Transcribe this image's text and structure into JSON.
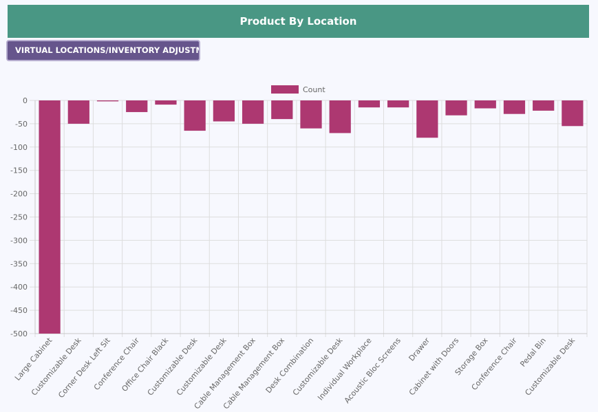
{
  "header": {
    "title": "Product By Location"
  },
  "location_button": {
    "label": "VIRTUAL LOCATIONS/INVENTORY ADJUSTMENT"
  },
  "colors": {
    "header_bg": "#499784",
    "button_bg": "#66558c",
    "bar": "#ad3871"
  },
  "chart_data": {
    "type": "bar",
    "legend": [
      "Count"
    ],
    "legend_position": "top-center",
    "grid": true,
    "categories": [
      "Large Cabinet",
      "Customizable Desk",
      "Corner Desk Left Sit",
      "Conference Chair",
      "Office Chair Black",
      "Customizable Desk",
      "Customizable Desk",
      "Cable Management Box",
      "Cable Management Box",
      "Desk Combination",
      "Customizable Desk",
      "Individual Workplace",
      "Acoustic Bloc Screens",
      "Drawer",
      "Cabinet with Doors",
      "Storage Box",
      "Conference Chair",
      "Pedal Bin",
      "Customizable Desk"
    ],
    "series": [
      {
        "name": "Count",
        "values": [
          -500,
          -50,
          -2,
          -25,
          -9,
          -65,
          -45,
          -50,
          -40,
          -60,
          -70,
          -15,
          -15,
          -80,
          -32,
          -17,
          -29,
          -22,
          -55
        ]
      }
    ],
    "ylim": [
      -500,
      0
    ],
    "yticks": [
      0,
      -50,
      -100,
      -150,
      -200,
      -250,
      -300,
      -350,
      -400,
      -450,
      -500
    ]
  }
}
